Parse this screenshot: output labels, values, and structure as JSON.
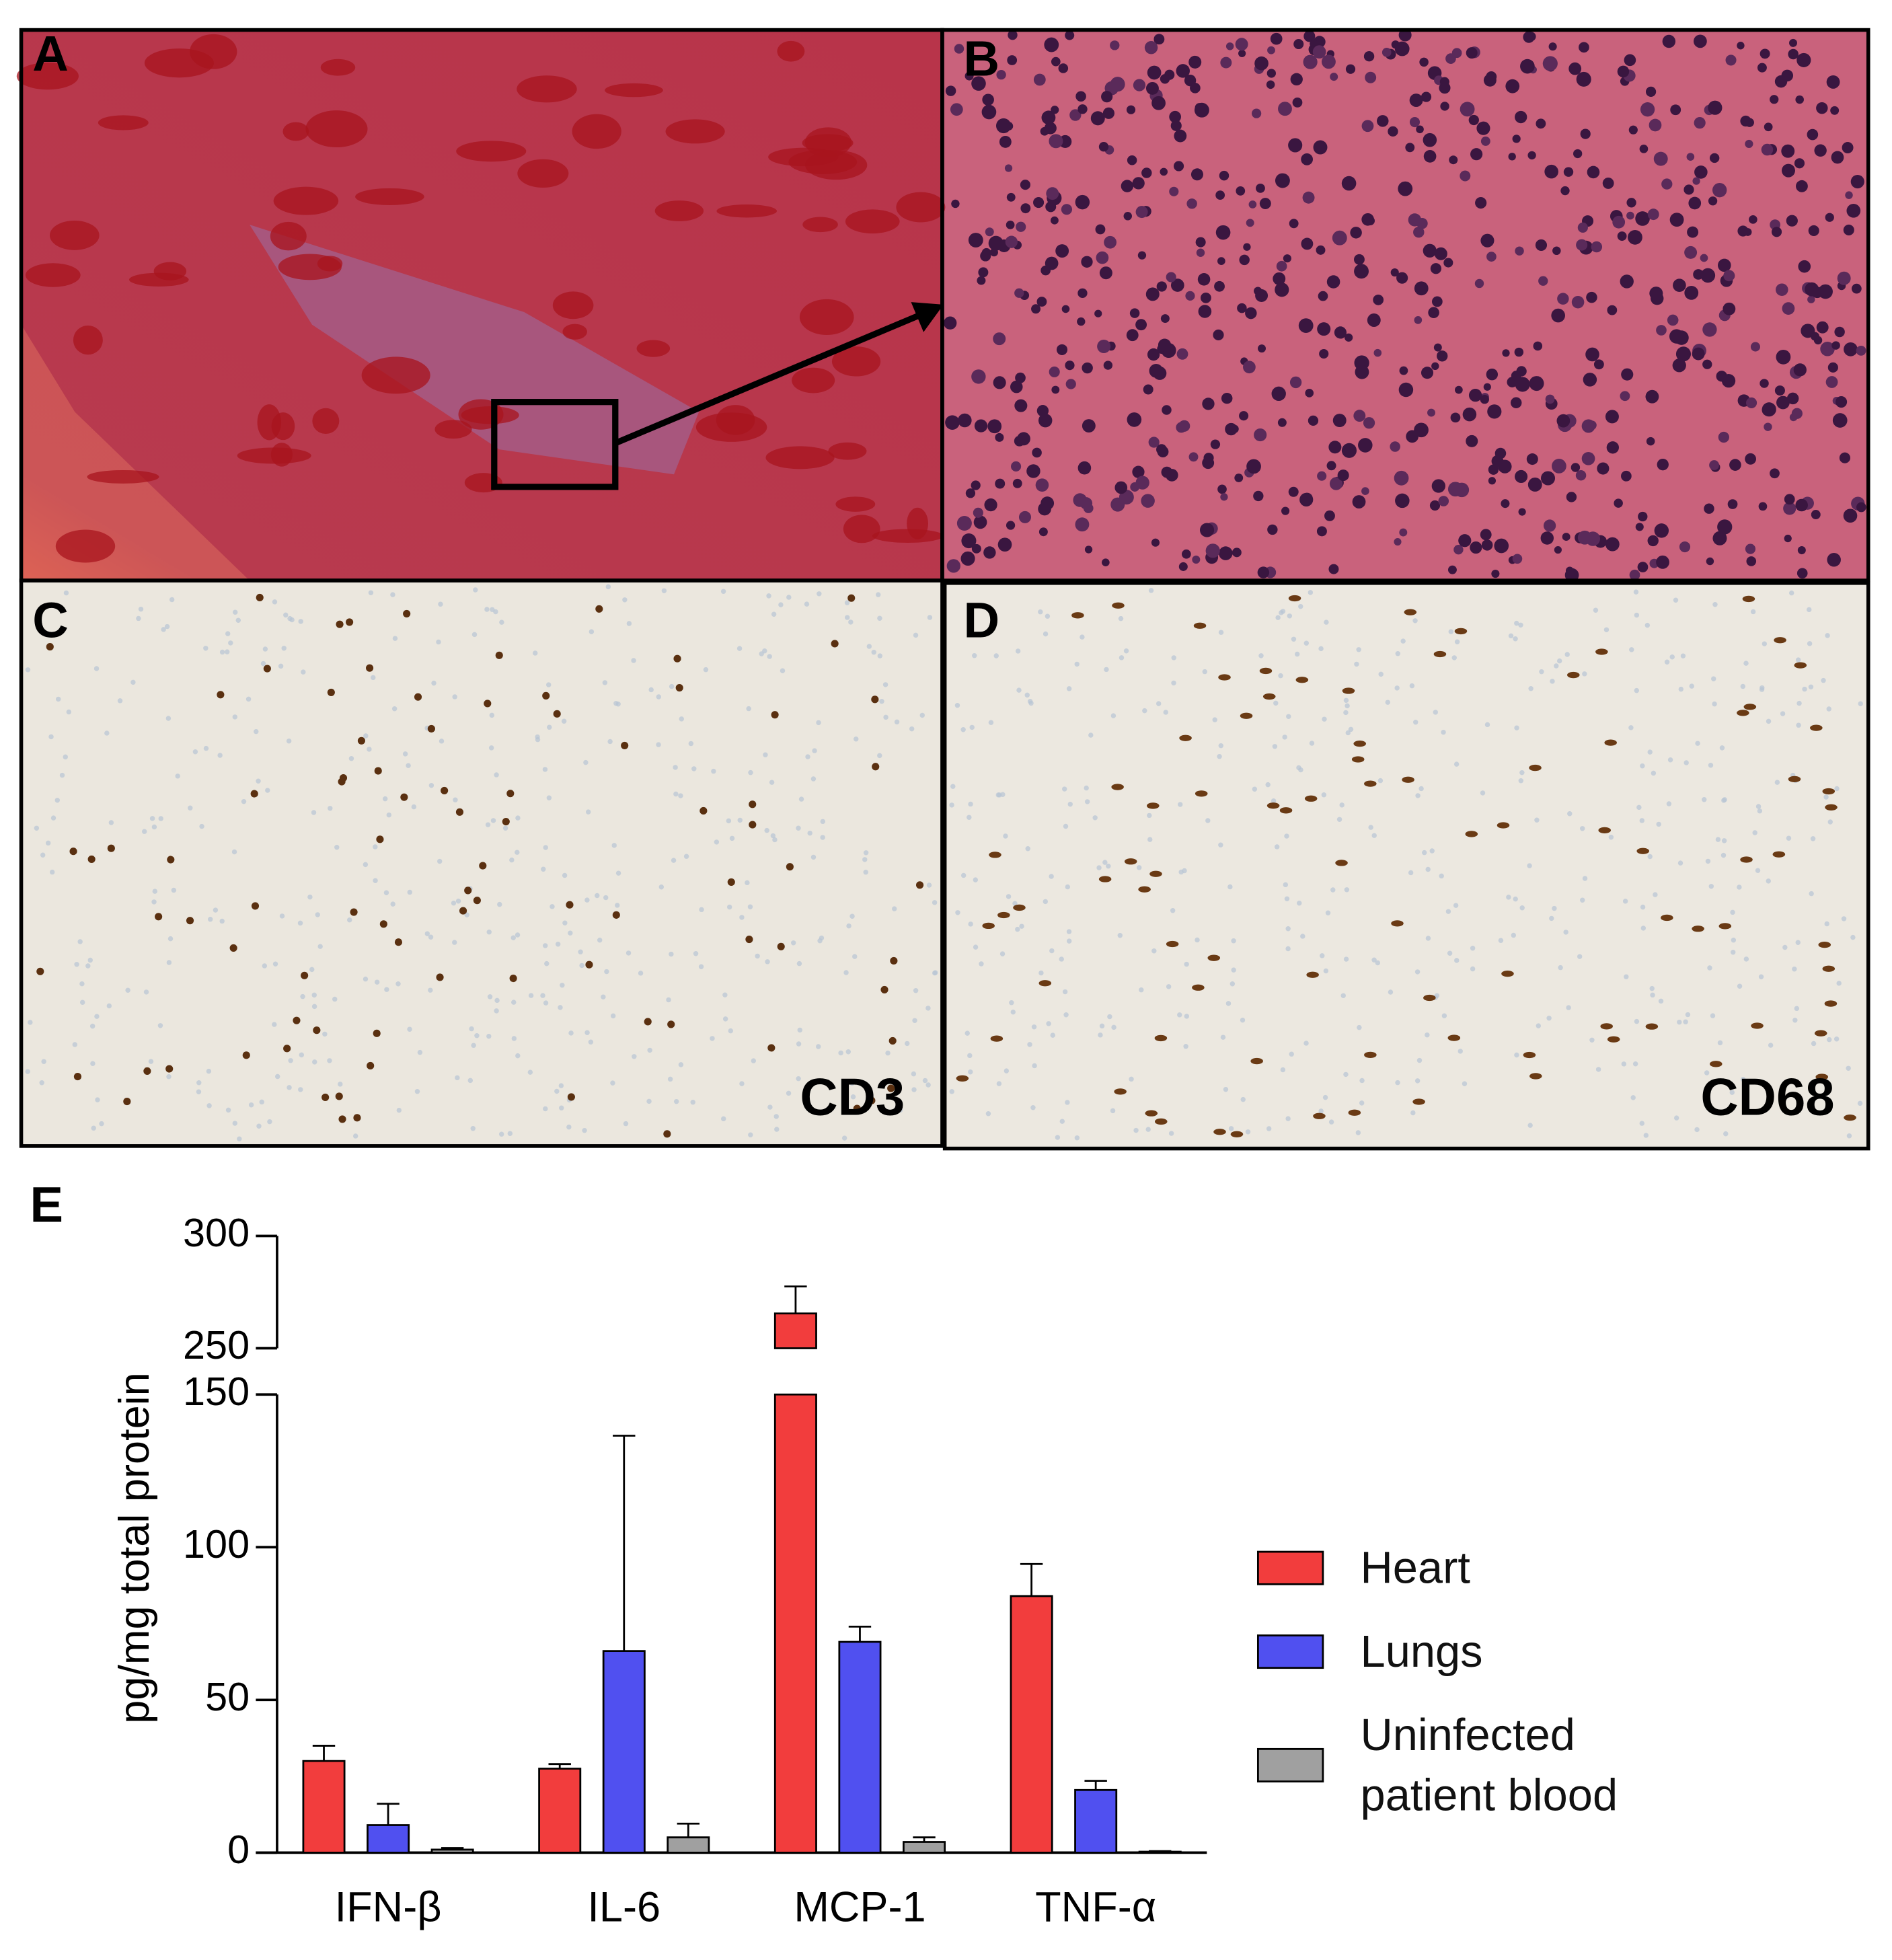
{
  "panels": [
    {
      "label": "A"
    },
    {
      "label": "B"
    },
    {
      "label": "C",
      "stain": "CD3"
    },
    {
      "label": "D",
      "stain": "CD68"
    }
  ],
  "chart_data": {
    "type": "bar",
    "panel_label": "E",
    "y_label": "pg/mg total protein",
    "categories": [
      "IFN-β",
      "IL-6",
      "MCP-1",
      "TNF-α"
    ],
    "series": [
      {
        "name": "Heart",
        "color": "#f23d3d",
        "values": [
          30,
          27.5,
          265.5,
          84
        ],
        "errors": [
          5,
          1.5,
          12,
          10.5
        ]
      },
      {
        "name": "Lungs",
        "color": "#5050f0",
        "values": [
          9,
          66,
          69,
          20.5
        ],
        "errors": [
          7,
          70.5,
          5,
          3
        ]
      },
      {
        "name": "Uninfected patient blood",
        "color": "#a0a0a0",
        "values": [
          1,
          5,
          3.5,
          0.3
        ],
        "errors": [
          0.5,
          4.5,
          1.5,
          0.2
        ]
      }
    ],
    "ylim": [
      0,
      300
    ],
    "y_segments": [
      [
        0,
        150
      ],
      [
        250,
        300
      ]
    ],
    "yticks": [
      0,
      50,
      100,
      150,
      250,
      300
    ],
    "legend": "right"
  }
}
